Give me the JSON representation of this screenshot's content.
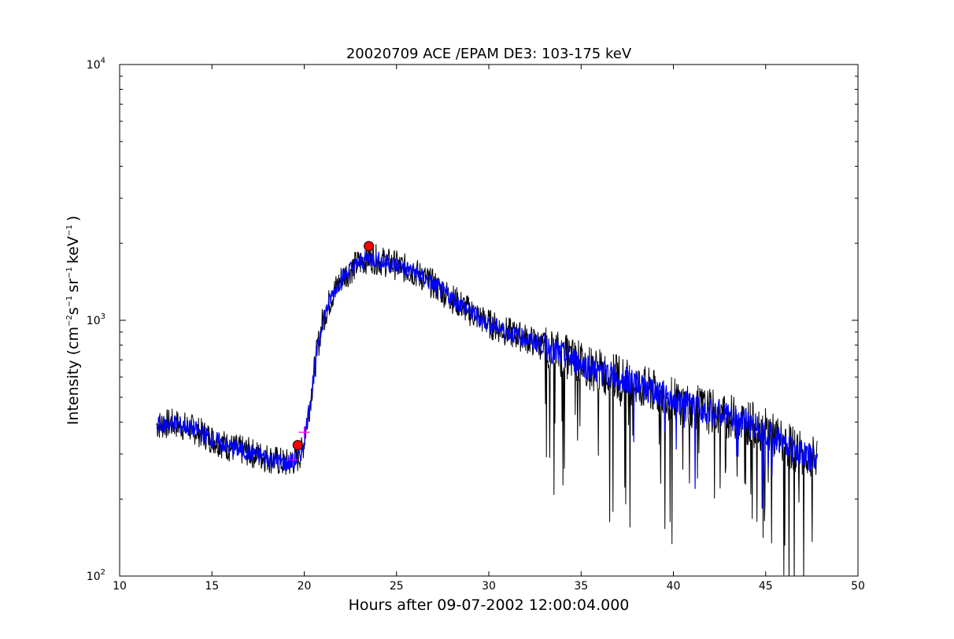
{
  "chart_data": {
    "type": "line",
    "title": "20020709 ACE /EPAM DE3: 103-175 keV",
    "xlabel": "Hours after 09-07-2002 12:00:04.000",
    "ylabel": {
      "prefix": "Intensity (cm",
      "exp1": "−2",
      "mid1": "s",
      "exp2": "−1",
      "mid2": "sr",
      "exp3": "−1",
      "mid3": "keV",
      "exp4": "−1",
      "suffix": ")"
    },
    "xlim": [
      10,
      50
    ],
    "ylim": [
      100,
      10000
    ],
    "yscale": "log",
    "xticks": [
      10,
      15,
      20,
      25,
      30,
      35,
      40,
      45,
      50
    ],
    "yticks": [
      {
        "value": 100,
        "base": "10",
        "exp": "2"
      },
      {
        "value": 1000,
        "base": "10",
        "exp": "3"
      },
      {
        "value": 10000,
        "base": "10",
        "exp": "4"
      }
    ],
    "series": [
      {
        "color": "#000000",
        "style": "raw",
        "x": [
          12.0,
          13.0,
          14.0,
          15.0,
          16.0,
          17.0,
          18.0,
          19.0,
          19.6,
          19.9,
          20.1,
          20.3,
          20.5,
          20.7,
          21.0,
          21.5,
          22.0,
          22.5,
          23.0,
          23.5,
          24.0,
          25.0,
          26.0,
          27.0,
          28.0,
          29.0,
          30.0,
          31.0,
          32.0,
          33.0,
          34.0,
          35.0,
          36.0,
          37.0,
          38.0,
          39.0,
          40.0,
          41.0,
          42.0,
          43.0,
          44.0,
          45.0,
          46.0,
          47.0,
          47.8
        ],
        "y": [
          390,
          395,
          375,
          345,
          318,
          305,
          290,
          275,
          285,
          310,
          380,
          470,
          600,
          760,
          1000,
          1250,
          1450,
          1580,
          1680,
          1760,
          1720,
          1640,
          1540,
          1380,
          1220,
          1080,
          970,
          900,
          850,
          790,
          730,
          680,
          630,
          600,
          560,
          520,
          490,
          460,
          440,
          420,
          400,
          370,
          330,
          300,
          280
        ]
      },
      {
        "color": "#0000ff",
        "style": "smoothed",
        "x": [
          12.0,
          13.0,
          14.0,
          15.0,
          16.0,
          17.0,
          18.0,
          19.0,
          19.6,
          19.9,
          20.1,
          20.3,
          20.5,
          20.7,
          21.0,
          21.5,
          22.0,
          22.5,
          23.0,
          23.5,
          24.0,
          25.0,
          26.0,
          27.0,
          28.0,
          29.0,
          30.0,
          31.0,
          32.0,
          33.0,
          34.0,
          35.0,
          36.0,
          37.0,
          38.0,
          39.0,
          40.0,
          41.0,
          42.0,
          43.0,
          44.0,
          45.0,
          46.0,
          47.0,
          47.8
        ],
        "y": [
          390,
          395,
          375,
          345,
          318,
          305,
          290,
          275,
          285,
          310,
          380,
          470,
          600,
          760,
          1000,
          1250,
          1450,
          1580,
          1680,
          1760,
          1720,
          1640,
          1540,
          1380,
          1220,
          1080,
          970,
          900,
          850,
          790,
          730,
          680,
          630,
          600,
          560,
          520,
          490,
          460,
          440,
          420,
          400,
          370,
          330,
          300,
          280
        ]
      }
    ],
    "markers": [
      {
        "kind": "circle",
        "color": "#ff0000",
        "x": 23.5,
        "y": 1950
      },
      {
        "kind": "circle",
        "color": "#ff0000",
        "x": 19.65,
        "y": 325
      },
      {
        "kind": "plus",
        "color": "#ff00ff",
        "x": 19.4,
        "y": 285
      },
      {
        "kind": "plus",
        "color": "#ff00ff",
        "x": 20.0,
        "y": 365
      }
    ],
    "grid": false,
    "legend": "none"
  }
}
